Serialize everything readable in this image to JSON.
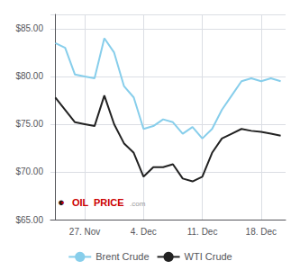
{
  "chart_data": {
    "type": "line",
    "x": [
      0,
      1,
      2,
      3,
      4,
      5,
      6,
      7,
      8,
      9,
      10,
      11,
      12,
      13,
      14,
      15,
      16,
      17,
      18,
      19,
      20,
      21,
      22,
      23
    ],
    "series": [
      {
        "name": "Brent Crude",
        "color": "#87CEEB",
        "values": [
          83.5,
          83.0,
          80.2,
          80.0,
          79.8,
          84.0,
          82.5,
          79.0,
          77.8,
          74.5,
          74.8,
          75.5,
          75.2,
          74.0,
          74.7,
          73.5,
          74.5,
          76.5,
          78.0,
          79.5,
          79.8,
          79.5,
          79.8,
          79.5
        ]
      },
      {
        "name": "WTI Crude",
        "color": "#222222",
        "values": [
          77.8,
          76.5,
          75.2,
          75.0,
          74.8,
          78.0,
          75.0,
          73.0,
          72.0,
          69.5,
          70.5,
          70.5,
          70.8,
          69.3,
          69.0,
          69.5,
          72.0,
          73.5,
          74.0,
          74.5,
          74.3,
          74.2,
          74.0,
          73.8
        ]
      }
    ],
    "xlim": [
      -0.5,
      23.5
    ],
    "xticks": [
      {
        "value": 3,
        "label": "27. Nov"
      },
      {
        "value": 9,
        "label": "4. Dec"
      },
      {
        "value": 15,
        "label": "11. Dec"
      },
      {
        "value": 21,
        "label": "18. Dec"
      }
    ],
    "ylim": [
      65.0,
      86.5
    ],
    "yticks": [
      {
        "value": 65,
        "label": "$65.00"
      },
      {
        "value": 70,
        "label": "$70.00"
      },
      {
        "value": 75,
        "label": "$75.00"
      },
      {
        "value": 80,
        "label": "$80.00"
      },
      {
        "value": 85,
        "label": "$85.00"
      }
    ],
    "grid": true,
    "legend": "bottom",
    "annotations": [
      {
        "text": "●",
        "color": "#1a1a1a"
      },
      {
        "text": "●",
        "color": "#cc0000"
      },
      {
        "text": "OIL",
        "color": "#cc0000"
      },
      {
        "text": "PRICE",
        "color": "#cc0000"
      },
      {
        "text": ".com",
        "color": "#999999"
      }
    ]
  }
}
